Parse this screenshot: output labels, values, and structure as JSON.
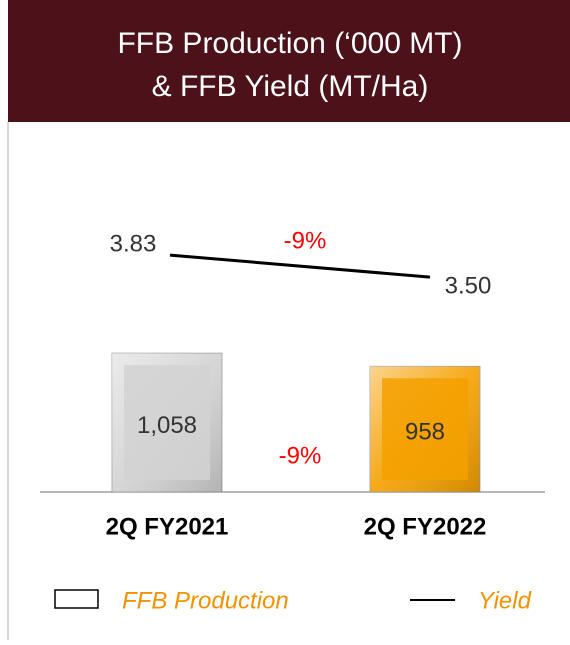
{
  "chart_data": {
    "type": "bar",
    "title": [
      "FFB Production (‘000 MT)",
      "& FFB Yield (MT/Ha)"
    ],
    "categories": [
      "2Q FY2021",
      "2Q FY2022"
    ],
    "series": [
      {
        "name": "FFB Production",
        "type": "bar",
        "colors": [
          "#d2d2d2",
          "#f5a000"
        ],
        "values": [
          1058,
          958
        ],
        "value_labels": [
          "1,058",
          "958"
        ]
      },
      {
        "name": "Yield",
        "type": "line",
        "axis": "y2",
        "color": "#000000",
        "values": [
          3.83,
          3.5
        ],
        "value_labels": [
          "3.83",
          "3.50"
        ]
      }
    ],
    "annotations": [
      "-9%",
      "-9%"
    ],
    "annotation_color": "#ff0000",
    "legend_text_color": "#f29200",
    "ylim": [
      0,
      1600
    ],
    "y2lim": [
      1,
      5
    ]
  }
}
